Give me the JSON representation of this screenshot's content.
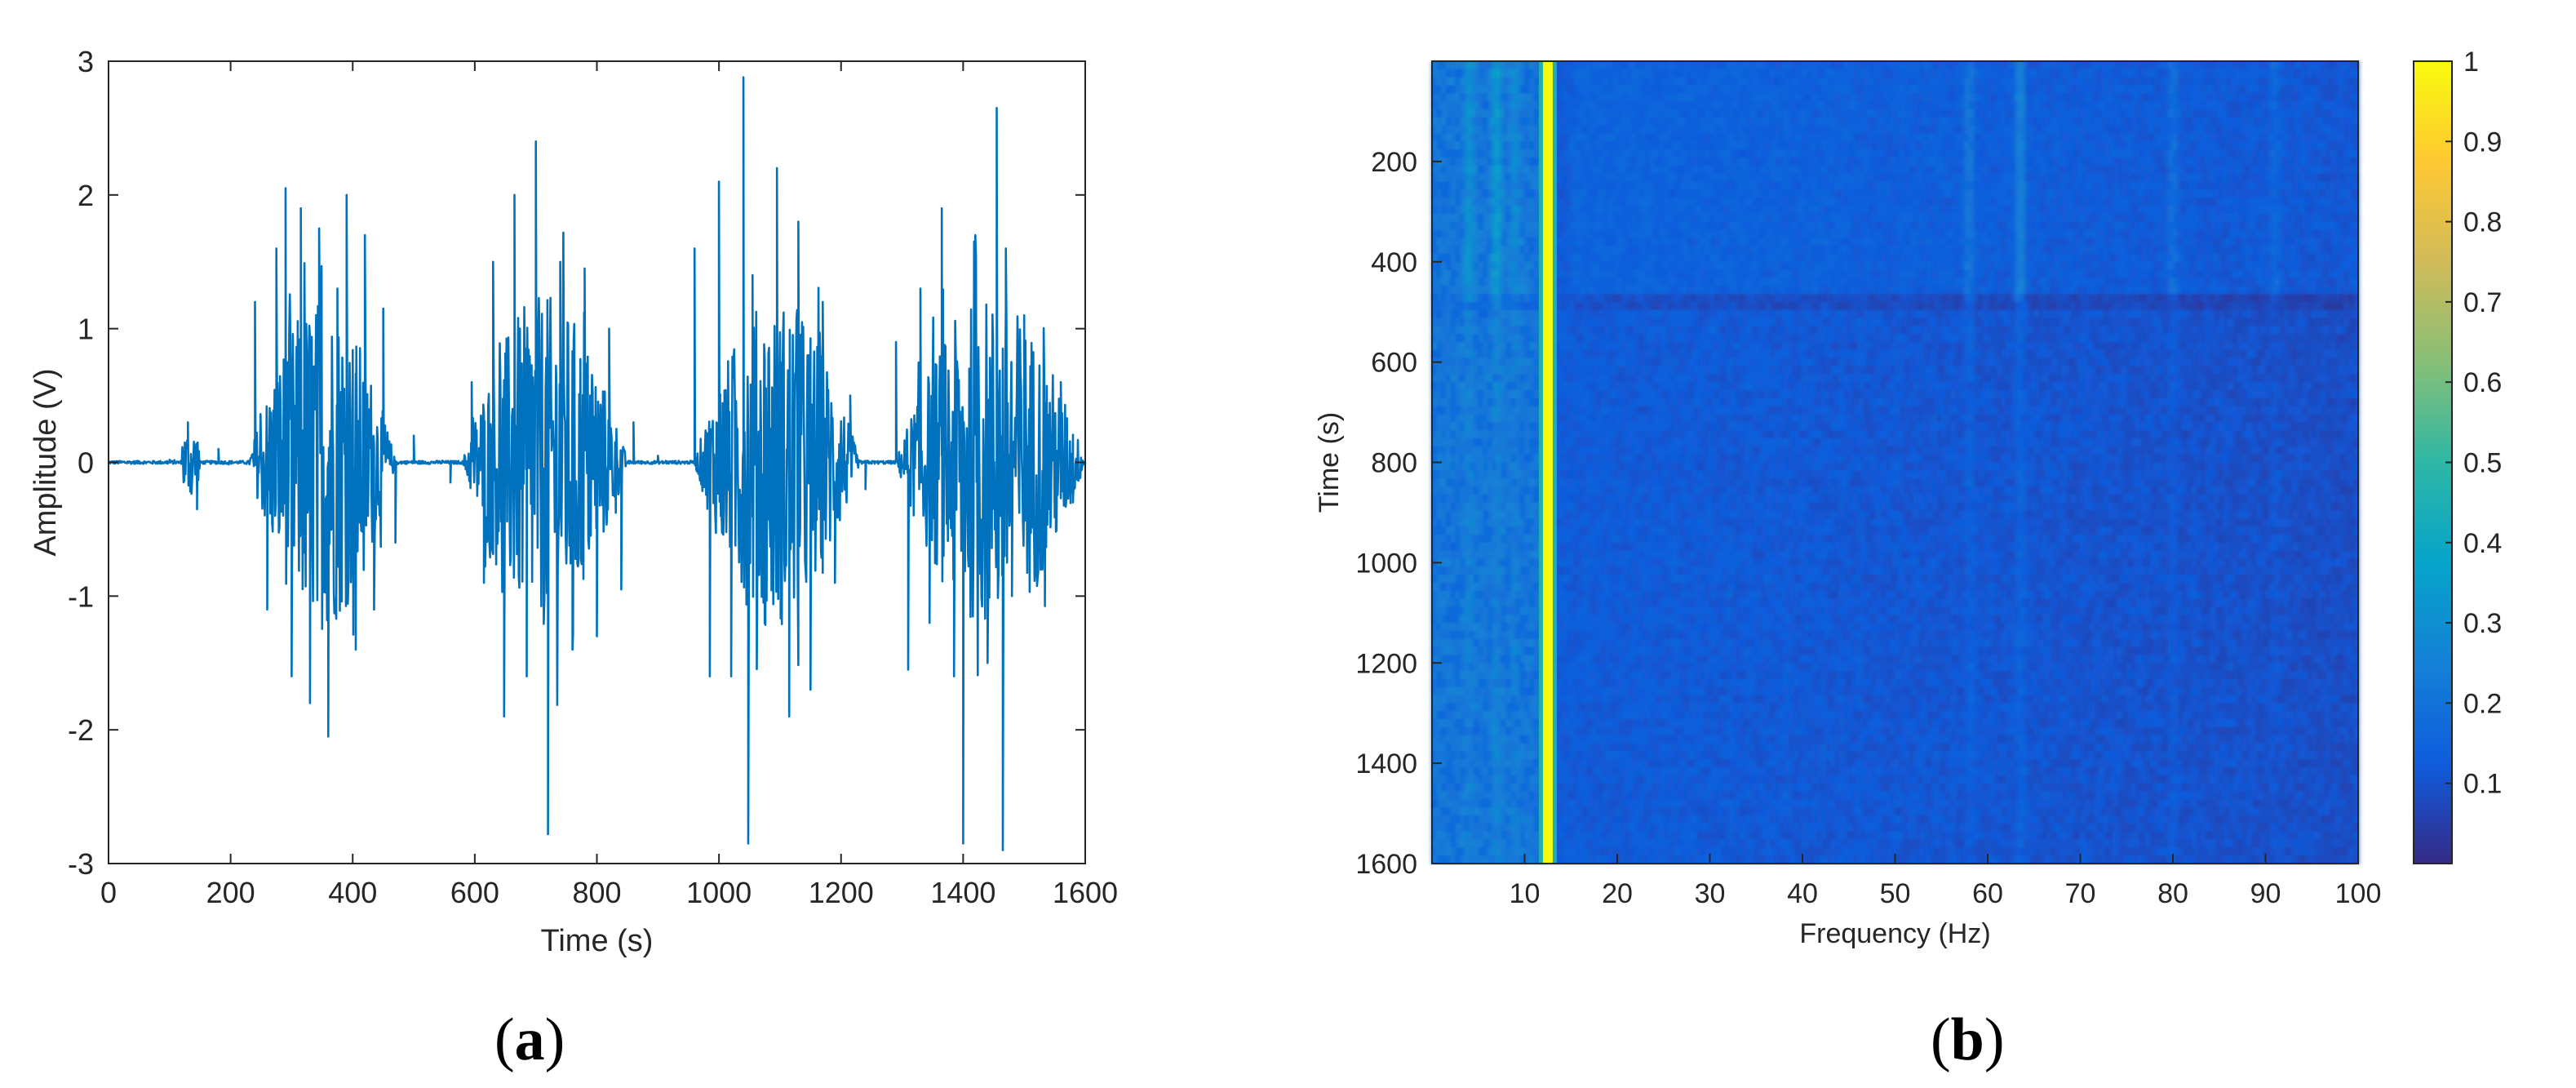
{
  "panels": {
    "a": {
      "label_open": "(",
      "label_letter": "a",
      "label_close": ")"
    },
    "b": {
      "label_open": "(",
      "label_letter": "b",
      "label_close": ")"
    }
  },
  "chart_data": [
    {
      "type": "line",
      "xlabel": "Time (s)",
      "ylabel": "Amplitude (V)",
      "xlim": [
        0,
        1600
      ],
      "ylim": [
        -3,
        3
      ],
      "xticks": [
        0,
        200,
        400,
        600,
        800,
        1000,
        1200,
        1400,
        1600
      ],
      "yticks": [
        -3,
        -2,
        -1,
        0,
        1,
        2,
        3
      ],
      "grid": false,
      "line_color": "#0072BD",
      "bursts": [
        {
          "start": 230,
          "end": 470,
          "peak": 2.05,
          "trough": -2.05
        },
        {
          "start": 580,
          "end": 850,
          "peak": 2.4,
          "trough": -2.78
        },
        {
          "start": 960,
          "end": 1230,
          "peak": 2.88,
          "trough": -2.85
        },
        {
          "start": 1290,
          "end": 1600,
          "peak": 2.65,
          "trough": -2.9
        }
      ],
      "series": [
        {
          "x": [
            0,
            50,
            100,
            130,
            145,
            180,
            240,
            260,
            275,
            290,
            300,
            315,
            330,
            345,
            360,
            375,
            390,
            405,
            420,
            435,
            450,
            470,
            500,
            560,
            595,
            615,
            630,
            648,
            665,
            685,
            700,
            720,
            740,
            760,
            780,
            800,
            820,
            840,
            860,
            900,
            960,
            985,
            1000,
            1020,
            1040,
            1048,
            1055,
            1075,
            1095,
            1115,
            1130,
            1150,
            1170,
            1190,
            1215,
            1240,
            1290,
            1310,
            1330,
            1345,
            1365,
            1385,
            1400,
            1420,
            1440,
            1455,
            1465,
            1470,
            1480,
            1500,
            1530,
            1560,
            1580,
            1600
          ],
          "y": [
            0,
            0.01,
            0.02,
            0.3,
            -0.35,
            0.1,
            1.2,
            -1.1,
            1.6,
            2.05,
            -1.6,
            1.9,
            -1.8,
            1.75,
            -2.05,
            1.3,
            2.0,
            -1.4,
            1.7,
            -1.1,
            1.15,
            -0.6,
            0.2,
            -0.15,
            0.6,
            -0.9,
            1.5,
            -1.9,
            2.0,
            -1.6,
            2.4,
            -2.78,
            1.5,
            -1.4,
            1.45,
            -1.3,
            1.0,
            -0.95,
            0.3,
            0.05,
            1.6,
            -1.6,
            2.1,
            -1.6,
            2.88,
            -2.85,
            1.4,
            -1.2,
            2.2,
            -1.9,
            1.8,
            -1.7,
            1.2,
            -0.9,
            0.5,
            -0.2,
            0.9,
            -1.55,
            1.3,
            -1.2,
            1.9,
            -1.6,
            -2.85,
            1.7,
            -1.5,
            2.65,
            -2.9,
            1.6,
            -1.0,
            1.1,
            -0.8,
            0.6,
            -0.3,
            0.0
          ]
        }
      ]
    },
    {
      "type": "heatmap",
      "xlabel": "Frequency (Hz)",
      "ylabel": "Time (s)",
      "xlim": [
        0,
        100
      ],
      "ylim": [
        0,
        1600
      ],
      "y_reversed": true,
      "xticks": [
        10,
        20,
        30,
        40,
        50,
        60,
        70,
        80,
        90,
        100
      ],
      "yticks": [
        200,
        400,
        600,
        800,
        1000,
        1200,
        1400,
        1600
      ],
      "colormap": "parula",
      "colorbar": {
        "min": 0,
        "max": 1,
        "ticks": [
          0.1,
          0.2,
          0.3,
          0.4,
          0.5,
          0.6,
          0.7,
          0.8,
          0.9,
          1
        ],
        "colors": [
          "#352a87",
          "#0f5cdd",
          "#1481d6",
          "#06a4ca",
          "#2eb7a4",
          "#87bf77",
          "#d1bb59",
          "#fec832",
          "#f9fb0e"
        ]
      },
      "dominant_line": {
        "frequency": 12.5,
        "value": 1.0
      },
      "background_value": 0.15,
      "stripes": [
        {
          "frequency": 4,
          "value": 0.25
        },
        {
          "frequency": 7,
          "value": 0.3
        },
        {
          "frequency": 9,
          "value": 0.22
        },
        {
          "frequency": 58,
          "value": 0.22
        },
        {
          "frequency": 63.5,
          "value": 0.28
        },
        {
          "frequency": 80,
          "value": 0.2
        },
        {
          "frequency": 91,
          "value": 0.18
        }
      ]
    }
  ]
}
